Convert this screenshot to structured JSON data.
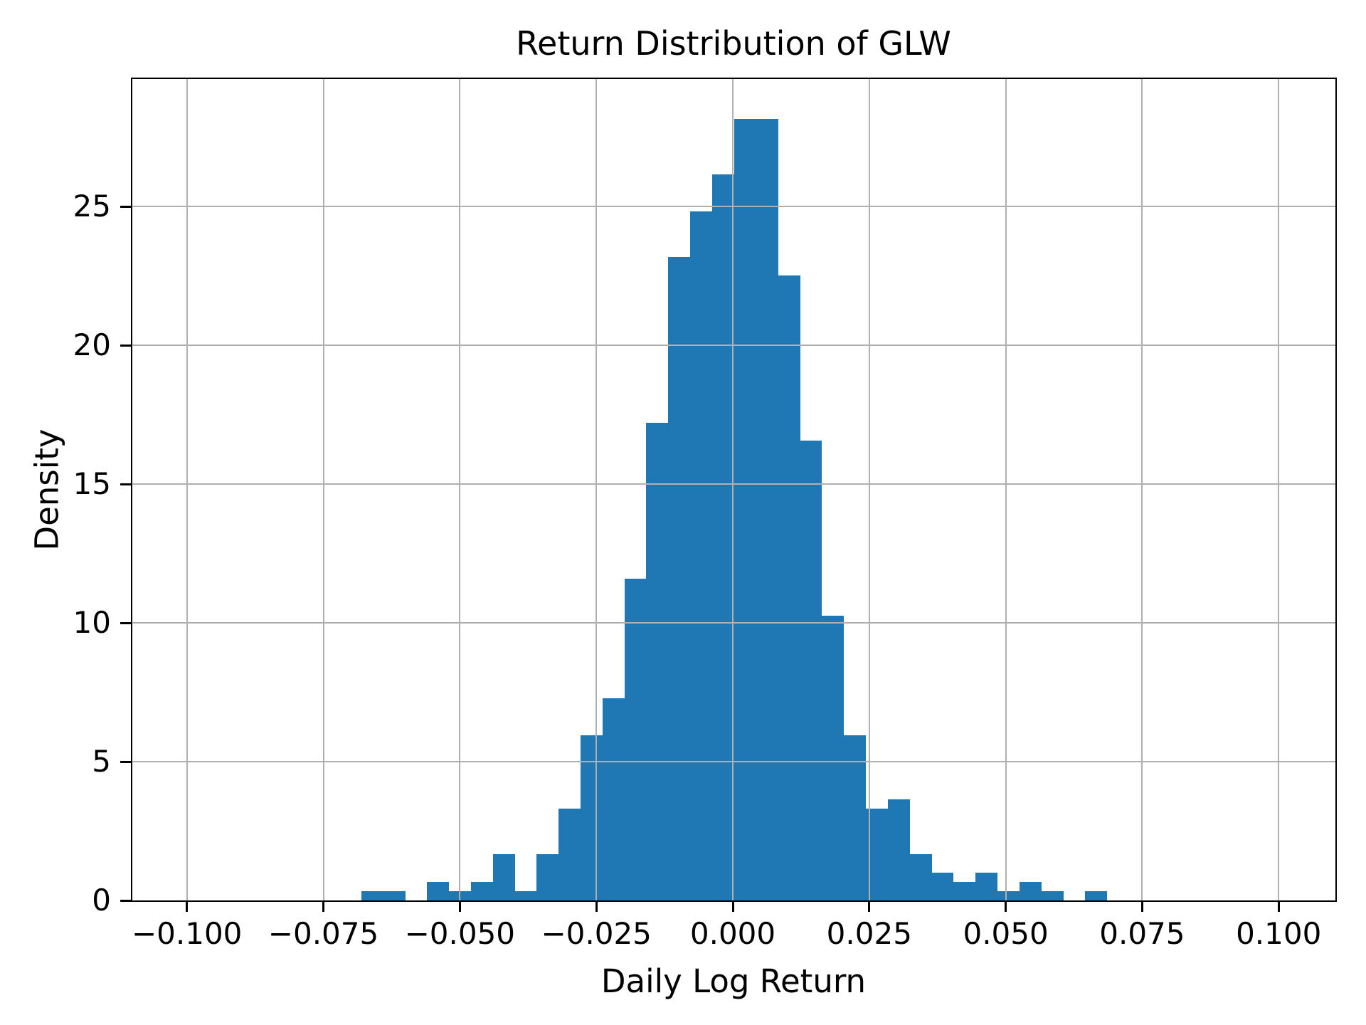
{
  "chart_data": {
    "type": "bar",
    "subtype": "histogram",
    "title": "Return Distribution of GLW",
    "xlabel": "Daily Log Return",
    "ylabel": "Density",
    "grid": true,
    "legend": "none",
    "bar_color": "#1f77b4",
    "grid_color": "#b0b0b0",
    "axis_color": "#000000",
    "background_color": "#ffffff",
    "bin_start": -0.0681,
    "bin_width": 0.004019,
    "n_observations": 755,
    "counts": [
      1,
      1,
      0,
      2,
      1,
      2,
      5,
      1,
      5,
      10,
      18,
      22,
      35,
      52,
      70,
      75,
      79,
      85,
      85,
      68,
      50,
      31,
      18,
      10,
      11,
      5,
      3,
      2,
      3,
      1,
      2,
      1,
      0,
      1
    ],
    "densities": [
      0.331,
      0.331,
      0,
      0.662,
      0.331,
      0.662,
      1.656,
      0.331,
      1.656,
      3.311,
      5.96,
      7.285,
      11.589,
      17.219,
      23.179,
      24.834,
      26.159,
      28.146,
      28.146,
      22.517,
      16.556,
      10.265,
      5.96,
      3.311,
      3.642,
      1.656,
      0.993,
      0.662,
      0.993,
      0.331,
      0.662,
      0.331,
      0,
      0.331
    ],
    "xlim": [
      -0.11,
      0.1104
    ],
    "ylim": [
      0,
      29.59
    ],
    "xtick_values": [
      -0.1,
      -0.075,
      -0.05,
      -0.025,
      0.0,
      0.025,
      0.05,
      0.075,
      0.1
    ],
    "xtick_labels": [
      "−0.100",
      "−0.075",
      "−0.050",
      "−0.025",
      "0.000",
      "0.025",
      "0.050",
      "0.075",
      "0.100"
    ],
    "ytick_values": [
      0,
      5,
      10,
      15,
      20,
      25
    ],
    "ytick_labels": [
      "0",
      "5",
      "10",
      "15",
      "20",
      "25"
    ]
  }
}
